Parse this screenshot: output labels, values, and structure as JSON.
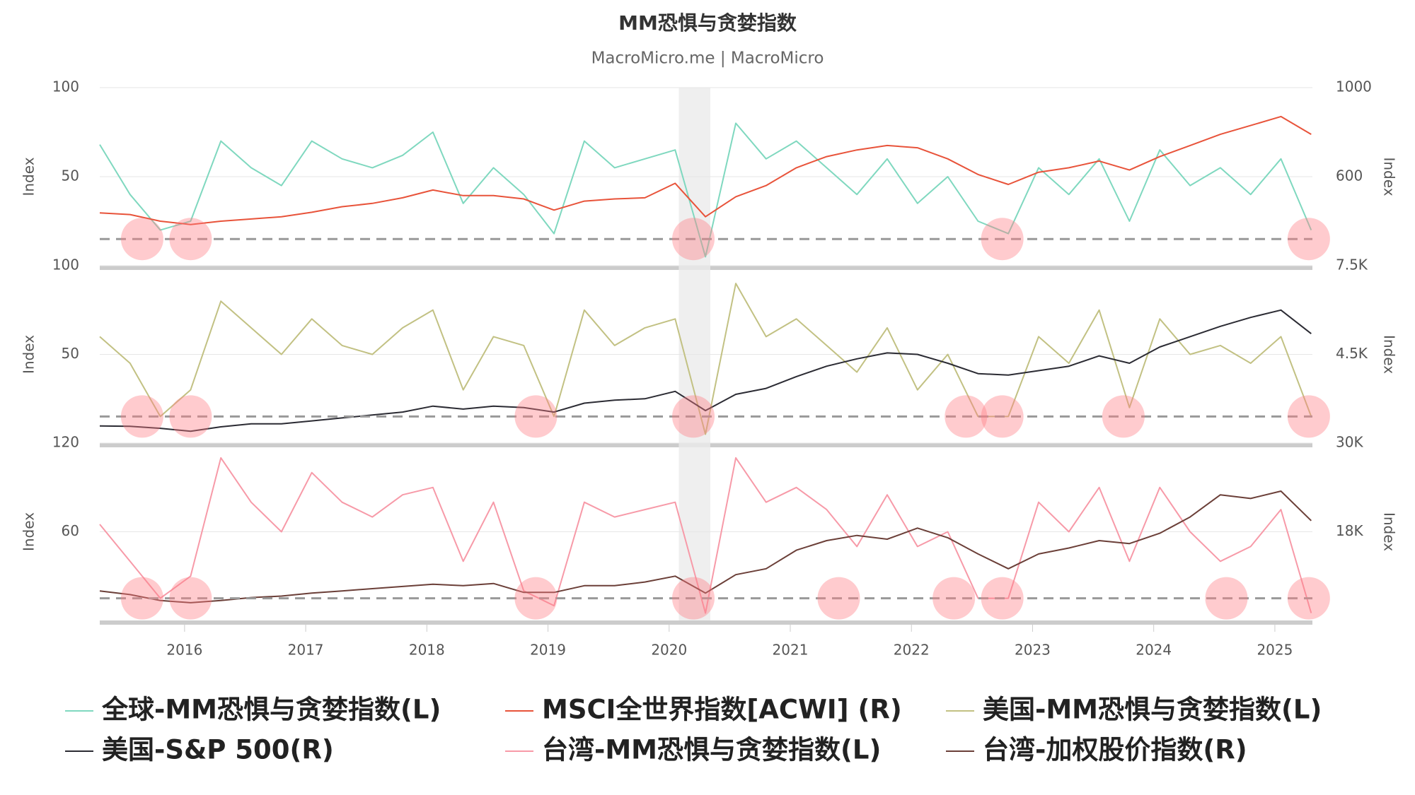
{
  "chart_data": [
    {
      "type": "line",
      "title": "MM恐惧与贪婪指数",
      "subtitle": "MacroMicro.me | MacroMicro",
      "ylabel": "Index",
      "y2label": "Index",
      "xlim": [
        2015.3,
        2025.31
      ],
      "x": [
        2015.3,
        2015.55,
        2015.8,
        2016.05,
        2016.3,
        2016.55,
        2016.8,
        2017.05,
        2017.3,
        2017.55,
        2017.8,
        2018.05,
        2018.3,
        2018.55,
        2018.8,
        2019.05,
        2019.3,
        2019.55,
        2019.8,
        2020.05,
        2020.3,
        2020.55,
        2020.8,
        2021.05,
        2021.3,
        2021.55,
        2021.8,
        2022.05,
        2022.3,
        2022.55,
        2022.8,
        2023.05,
        2023.3,
        2023.55,
        2023.8,
        2024.05,
        2024.3,
        2024.55,
        2024.8,
        2025.05,
        2025.3
      ],
      "ylim": [
        0,
        100
      ],
      "yticks": [
        50,
        100
      ],
      "y2lim": [
        200,
        1000
      ],
      "y2ticks": [
        600,
        1000
      ],
      "grid": true,
      "threshold": 15,
      "shade": [
        2020.08,
        2020.34
      ],
      "highlights": [
        2015.65,
        2016.05,
        2020.2,
        2022.75,
        2025.28
      ],
      "series": [
        {
          "name": "全球-MM恐惧与贪婪指数(L)",
          "color": "#7fd8bf",
          "axis": "y",
          "values": [
            68,
            40,
            20,
            25,
            70,
            55,
            45,
            70,
            60,
            55,
            62,
            75,
            35,
            55,
            40,
            18,
            70,
            55,
            60,
            65,
            5,
            80,
            60,
            70,
            55,
            40,
            60,
            35,
            50,
            25,
            18,
            55,
            40,
            60,
            25,
            65,
            45,
            55,
            40,
            60,
            20
          ]
        },
        {
          "name": "MSCI全世界指数[ACWI] (R)",
          "color": "#e8533a",
          "axis": "y2",
          "values": [
            437,
            430,
            400,
            385,
            400,
            410,
            420,
            440,
            465,
            480,
            505,
            540,
            515,
            515,
            500,
            450,
            490,
            500,
            505,
            570,
            420,
            510,
            560,
            640,
            690,
            720,
            740,
            730,
            680,
            610,
            565,
            620,
            640,
            670,
            630,
            690,
            740,
            790,
            830,
            870,
            790
          ]
        }
      ]
    },
    {
      "type": "line",
      "ylabel": "Index",
      "y2label": "Index",
      "xlim": [
        2015.3,
        2025.31
      ],
      "x": [
        2015.3,
        2015.55,
        2015.8,
        2016.05,
        2016.3,
        2016.55,
        2016.8,
        2017.05,
        2017.3,
        2017.55,
        2017.8,
        2018.05,
        2018.3,
        2018.55,
        2018.8,
        2019.05,
        2019.3,
        2019.55,
        2019.8,
        2020.05,
        2020.3,
        2020.55,
        2020.8,
        2021.05,
        2021.3,
        2021.55,
        2021.8,
        2022.05,
        2022.3,
        2022.55,
        2022.8,
        2023.05,
        2023.3,
        2023.55,
        2023.8,
        2024.05,
        2024.3,
        2024.55,
        2024.8,
        2025.05,
        2025.3
      ],
      "ylim": [
        0,
        100
      ],
      "yticks": [
        50,
        100
      ],
      "y2lim": [
        1500,
        7500
      ],
      "y2ticks": [
        {
          "value": 4500,
          "label": "4.5K"
        },
        {
          "value": 7500,
          "label": "7.5K"
        }
      ],
      "grid": true,
      "threshold": 15,
      "shade": [
        2020.08,
        2020.34
      ],
      "highlights": [
        2015.65,
        2016.05,
        2018.9,
        2020.2,
        2022.45,
        2022.75,
        2023.75,
        2025.28
      ],
      "series": [
        {
          "name": "美国-MM恐惧与贪婪指数(L)",
          "color": "#c2c183",
          "axis": "y",
          "values": [
            60,
            45,
            15,
            30,
            80,
            65,
            50,
            70,
            55,
            50,
            65,
            75,
            30,
            60,
            55,
            15,
            75,
            55,
            65,
            70,
            5,
            90,
            60,
            70,
            55,
            40,
            65,
            30,
            50,
            15,
            15,
            60,
            45,
            75,
            20,
            70,
            50,
            55,
            45,
            60,
            15
          ]
        },
        {
          "name": "美国-S&P 500(R)",
          "color": "#2b2b33",
          "axis": "y2",
          "values": [
            2080,
            2070,
            2000,
            1900,
            2050,
            2150,
            2150,
            2250,
            2350,
            2450,
            2550,
            2750,
            2650,
            2750,
            2700,
            2550,
            2850,
            2950,
            3000,
            3250,
            2600,
            3150,
            3350,
            3750,
            4100,
            4350,
            4550,
            4500,
            4200,
            3850,
            3800,
            3950,
            4100,
            4450,
            4200,
            4750,
            5100,
            5450,
            5750,
            6000,
            5200
          ]
        }
      ]
    },
    {
      "type": "line",
      "ylabel": "Index",
      "y2label": "Index",
      "xlim": [
        2015.3,
        2025.31
      ],
      "xticks": [
        2016,
        2017,
        2018,
        2019,
        2020,
        2021,
        2022,
        2023,
        2024,
        2025
      ],
      "x": [
        2015.3,
        2015.55,
        2015.8,
        2016.05,
        2016.3,
        2016.55,
        2016.8,
        2017.05,
        2017.3,
        2017.55,
        2017.8,
        2018.05,
        2018.3,
        2018.55,
        2018.8,
        2019.05,
        2019.3,
        2019.55,
        2019.8,
        2020.05,
        2020.3,
        2020.55,
        2020.8,
        2021.05,
        2021.3,
        2021.55,
        2021.8,
        2022.05,
        2022.3,
        2022.55,
        2022.8,
        2023.05,
        2023.3,
        2023.55,
        2023.8,
        2024.05,
        2024.3,
        2024.55,
        2024.8,
        2025.05,
        2025.3
      ],
      "ylim": [
        0,
        120
      ],
      "yticks": [
        60,
        120
      ],
      "y2lim": [
        6000,
        30000
      ],
      "y2ticks": [
        {
          "value": 18000,
          "label": "18K"
        },
        {
          "value": 30000,
          "label": "30K"
        }
      ],
      "grid": true,
      "threshold": 15,
      "shade": [
        2020.08,
        2020.34
      ],
      "highlights": [
        2015.65,
        2016.05,
        2018.9,
        2020.2,
        2021.4,
        2022.35,
        2022.75,
        2024.6,
        2025.28
      ],
      "series": [
        {
          "name": "台湾-MM恐惧与贪婪指数(L)",
          "color": "#f79aa8",
          "axis": "y",
          "values": [
            65,
            40,
            15,
            30,
            110,
            80,
            60,
            100,
            80,
            70,
            85,
            90,
            40,
            80,
            20,
            10,
            80,
            70,
            75,
            80,
            5,
            110,
            80,
            90,
            75,
            50,
            85,
            50,
            60,
            15,
            15,
            80,
            60,
            90,
            40,
            90,
            60,
            40,
            50,
            75,
            5
          ]
        },
        {
          "name": "台湾-加权股价指数(R)",
          "color": "#6b3f38",
          "axis": "y2",
          "values": [
            10000,
            9500,
            8700,
            8400,
            8700,
            9100,
            9300,
            9700,
            10000,
            10300,
            10600,
            10900,
            10700,
            11000,
            9800,
            9800,
            10700,
            10700,
            11200,
            12000,
            9700,
            12200,
            13000,
            15500,
            16800,
            17500,
            17000,
            18500,
            17200,
            15000,
            13000,
            15000,
            15800,
            16800,
            16400,
            17800,
            20000,
            23000,
            22500,
            23500,
            19500
          ]
        }
      ]
    }
  ]
}
